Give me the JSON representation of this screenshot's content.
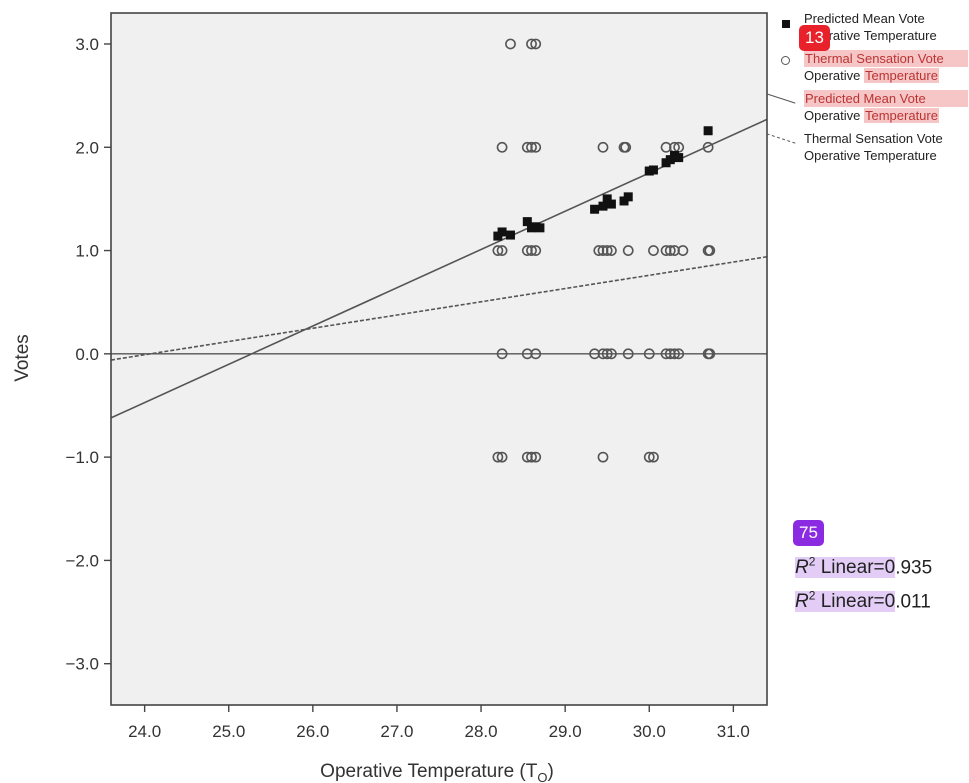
{
  "chart_data": {
    "type": "scatter",
    "xlabel": "Operative Temperature (T",
    "xlabel_sub": "O",
    "xlabel_close": ")",
    "ylabel": "Votes",
    "xlim": [
      23.6,
      31.4
    ],
    "ylim": [
      -3.4,
      3.3
    ],
    "xticks": [
      "24.0",
      "25.0",
      "26.0",
      "27.0",
      "28.0",
      "29.0",
      "30.0",
      "31.0"
    ],
    "yticks": [
      "3.0",
      "2.0",
      "1.0",
      "0.0",
      "−1.0",
      "−2.0",
      "−3.0"
    ],
    "grid": false,
    "series": [
      {
        "name": "Predicted Mean Vote",
        "marker": "filled-square",
        "points": [
          [
            28.2,
            1.14
          ],
          [
            28.25,
            1.18
          ],
          [
            28.35,
            1.15
          ],
          [
            28.55,
            1.28
          ],
          [
            28.6,
            1.22
          ],
          [
            28.65,
            1.23
          ],
          [
            28.7,
            1.22
          ],
          [
            29.35,
            1.4
          ],
          [
            29.45,
            1.43
          ],
          [
            29.5,
            1.5
          ],
          [
            29.55,
            1.45
          ],
          [
            29.7,
            1.48
          ],
          [
            29.75,
            1.52
          ],
          [
            30.0,
            1.77
          ],
          [
            30.05,
            1.78
          ],
          [
            30.2,
            1.85
          ],
          [
            30.25,
            1.88
          ],
          [
            30.3,
            1.92
          ],
          [
            30.35,
            1.9
          ],
          [
            30.7,
            2.16
          ]
        ]
      },
      {
        "name": "Thermal Sensation Vote",
        "marker": "open-circle",
        "points": [
          [
            28.35,
            3
          ],
          [
            28.6,
            3
          ],
          [
            28.65,
            3
          ],
          [
            28.25,
            2
          ],
          [
            28.55,
            2
          ],
          [
            28.6,
            2
          ],
          [
            28.65,
            2
          ],
          [
            29.45,
            2
          ],
          [
            29.7,
            2
          ],
          [
            29.72,
            2
          ],
          [
            30.2,
            2
          ],
          [
            30.3,
            2
          ],
          [
            30.35,
            2
          ],
          [
            30.7,
            2
          ],
          [
            28.2,
            1
          ],
          [
            28.25,
            1
          ],
          [
            28.55,
            1
          ],
          [
            28.6,
            1
          ],
          [
            28.65,
            1
          ],
          [
            29.4,
            1
          ],
          [
            29.45,
            1
          ],
          [
            29.5,
            1
          ],
          [
            29.55,
            1
          ],
          [
            29.75,
            1
          ],
          [
            30.05,
            1
          ],
          [
            30.2,
            1
          ],
          [
            30.25,
            1
          ],
          [
            30.3,
            1
          ],
          [
            30.4,
            1
          ],
          [
            30.7,
            1
          ],
          [
            30.72,
            1
          ],
          [
            28.25,
            0
          ],
          [
            28.55,
            0
          ],
          [
            28.65,
            0
          ],
          [
            29.35,
            0
          ],
          [
            29.45,
            0
          ],
          [
            29.5,
            0
          ],
          [
            29.55,
            0
          ],
          [
            29.75,
            0
          ],
          [
            30.0,
            0
          ],
          [
            30.2,
            0
          ],
          [
            30.25,
            0
          ],
          [
            30.3,
            0
          ],
          [
            30.35,
            0
          ],
          [
            30.7,
            0
          ],
          [
            30.72,
            0
          ],
          [
            28.2,
            -1
          ],
          [
            28.25,
            -1
          ],
          [
            28.55,
            -1
          ],
          [
            28.6,
            -1
          ],
          [
            28.65,
            -1
          ],
          [
            29.45,
            -1
          ],
          [
            30.0,
            -1
          ],
          [
            30.05,
            -1
          ]
        ]
      }
    ],
    "fit_lines": [
      {
        "series": "Predicted Mean Vote",
        "style": "solid",
        "x": [
          23.6,
          31.4
        ],
        "y": [
          -0.62,
          2.27
        ]
      },
      {
        "series": "Thermal Sensation Vote",
        "style": "dashed",
        "x": [
          23.6,
          31.4
        ],
        "y": [
          -0.06,
          0.94
        ]
      }
    ],
    "reference_line_y": 0,
    "legend": {
      "placement": "right",
      "items": [
        {
          "symbol": "filled-square",
          "line1": "Predicted Mean Vote",
          "line2": "Operative Temperature",
          "line2_prefix": "Op",
          "line2_rest": "erative Temperature"
        },
        {
          "symbol": "open-circle",
          "line1": "Thermal Sensation Vote",
          "line2_a": "Operative ",
          "line2_b": "Temperature"
        },
        {
          "symbol": "solid-line",
          "line1": "Predicted Mean Vote",
          "line2_a": "Operative ",
          "line2_b": "Temperature"
        },
        {
          "symbol": "dashed-line",
          "line1": "Thermal Sensation Vote",
          "line2": "Operative Temperature"
        }
      ]
    },
    "annotations": [
      {
        "r": "R",
        "sup": "2",
        "mid": " Linear=0",
        "value": ".935"
      },
      {
        "r": "R",
        "sup": "2",
        "mid": " Linear=0",
        "value": ".011"
      }
    ]
  },
  "badges": {
    "red": "13",
    "purple": "75"
  },
  "colors": {
    "plot_bg": "#f0f0f0",
    "axis": "#444444",
    "marker": "#111111",
    "circle": "#555555",
    "highlight_red": "#f6c6c6",
    "highlight_purple": "#e3cdf6"
  }
}
